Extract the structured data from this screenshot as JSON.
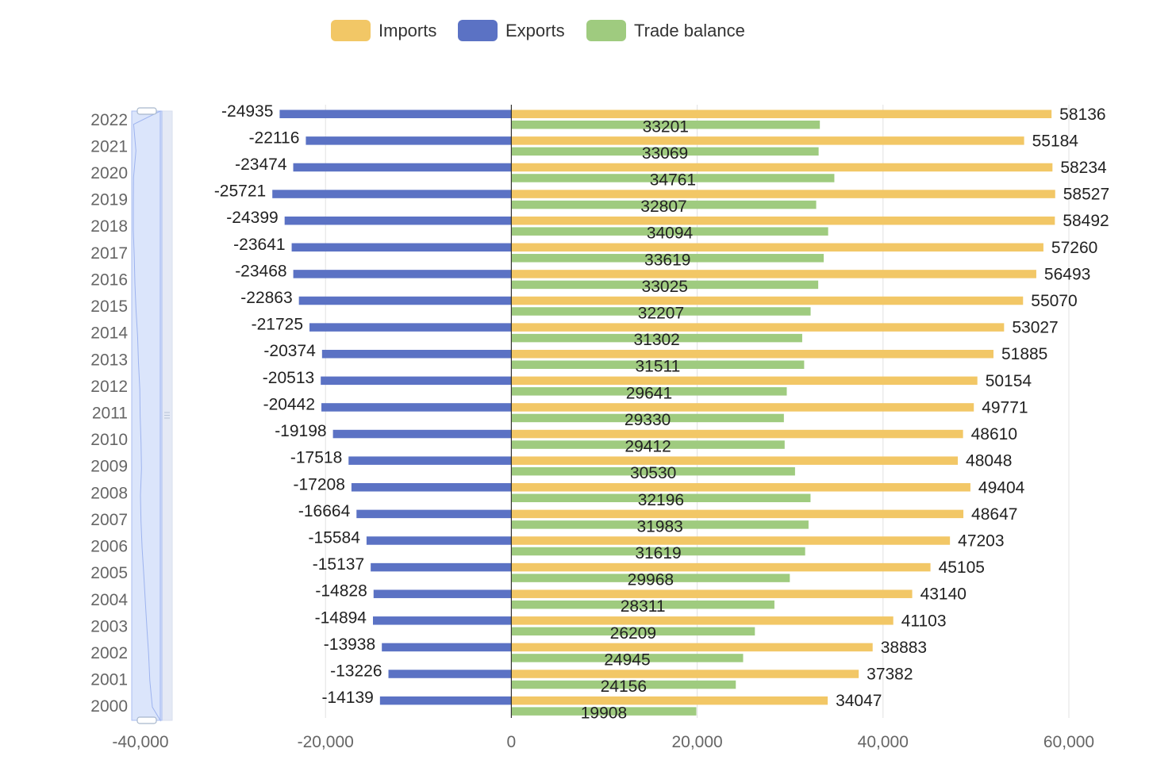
{
  "chart_data": {
    "type": "bar",
    "orientation": "horizontal",
    "legend_position": "top",
    "grid": true,
    "categories": [
      "2000",
      "2001",
      "2002",
      "2003",
      "2004",
      "2005",
      "2006",
      "2007",
      "2008",
      "2009",
      "2010",
      "2011",
      "2012",
      "2013",
      "2014",
      "2015",
      "2016",
      "2017",
      "2018",
      "2019",
      "2020",
      "2021",
      "2022"
    ],
    "series": [
      {
        "name": "Imports",
        "color": "#f2c766",
        "values": [
          34047,
          37382,
          38883,
          41103,
          43140,
          45105,
          47203,
          48647,
          49404,
          48048,
          48610,
          49771,
          50154,
          51885,
          53027,
          55070,
          56493,
          57260,
          58492,
          58527,
          58234,
          55184,
          58136
        ]
      },
      {
        "name": "Exports",
        "color": "#5b72c4",
        "values": [
          -14139,
          -13226,
          -13938,
          -14894,
          -14828,
          -15137,
          -15584,
          -16664,
          -17208,
          -17518,
          -19198,
          -20442,
          -20513,
          -20374,
          -21725,
          -22863,
          -23468,
          -23641,
          -24399,
          -25721,
          -23474,
          -22116,
          -24935
        ]
      },
      {
        "name": "Trade balance",
        "color": "#9fcb7f",
        "values": [
          19908,
          24156,
          24945,
          26209,
          28311,
          29968,
          31619,
          31983,
          32196,
          30530,
          29412,
          29330,
          29641,
          31511,
          31302,
          32207,
          33025,
          33619,
          34094,
          32807,
          34761,
          33069,
          33201
        ]
      }
    ],
    "xlim": [
      -40000,
      60000
    ],
    "x_ticks": [
      {
        "value": -40000,
        "label": "-40,000"
      },
      {
        "value": -20000,
        "label": "-20,000"
      },
      {
        "value": 0,
        "label": "0"
      },
      {
        "value": 20000,
        "label": "20,000"
      },
      {
        "value": 40000,
        "label": "40,000"
      },
      {
        "value": 60000,
        "label": "60,000"
      }
    ],
    "data_zoom": {
      "axis": "y",
      "start_fraction": 0,
      "end_fraction": 1
    }
  }
}
